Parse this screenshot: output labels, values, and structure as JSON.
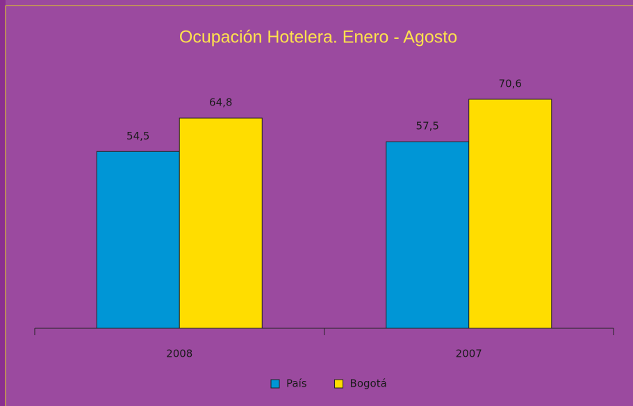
{
  "chart_data": {
    "type": "bar",
    "title": "Ocupación Hotelera. Enero - Agosto",
    "categories": [
      "2008",
      "2007"
    ],
    "series": [
      {
        "name": "País",
        "color": "#0096d6",
        "values": [
          54.5,
          57.5
        ],
        "value_labels": [
          "54,5",
          "57,5"
        ]
      },
      {
        "name": "Bogotá",
        "color": "#ffdd00",
        "values": [
          64.8,
          70.6
        ],
        "value_labels": [
          "64,8",
          "70,6"
        ]
      }
    ],
    "legend": "bottom"
  }
}
